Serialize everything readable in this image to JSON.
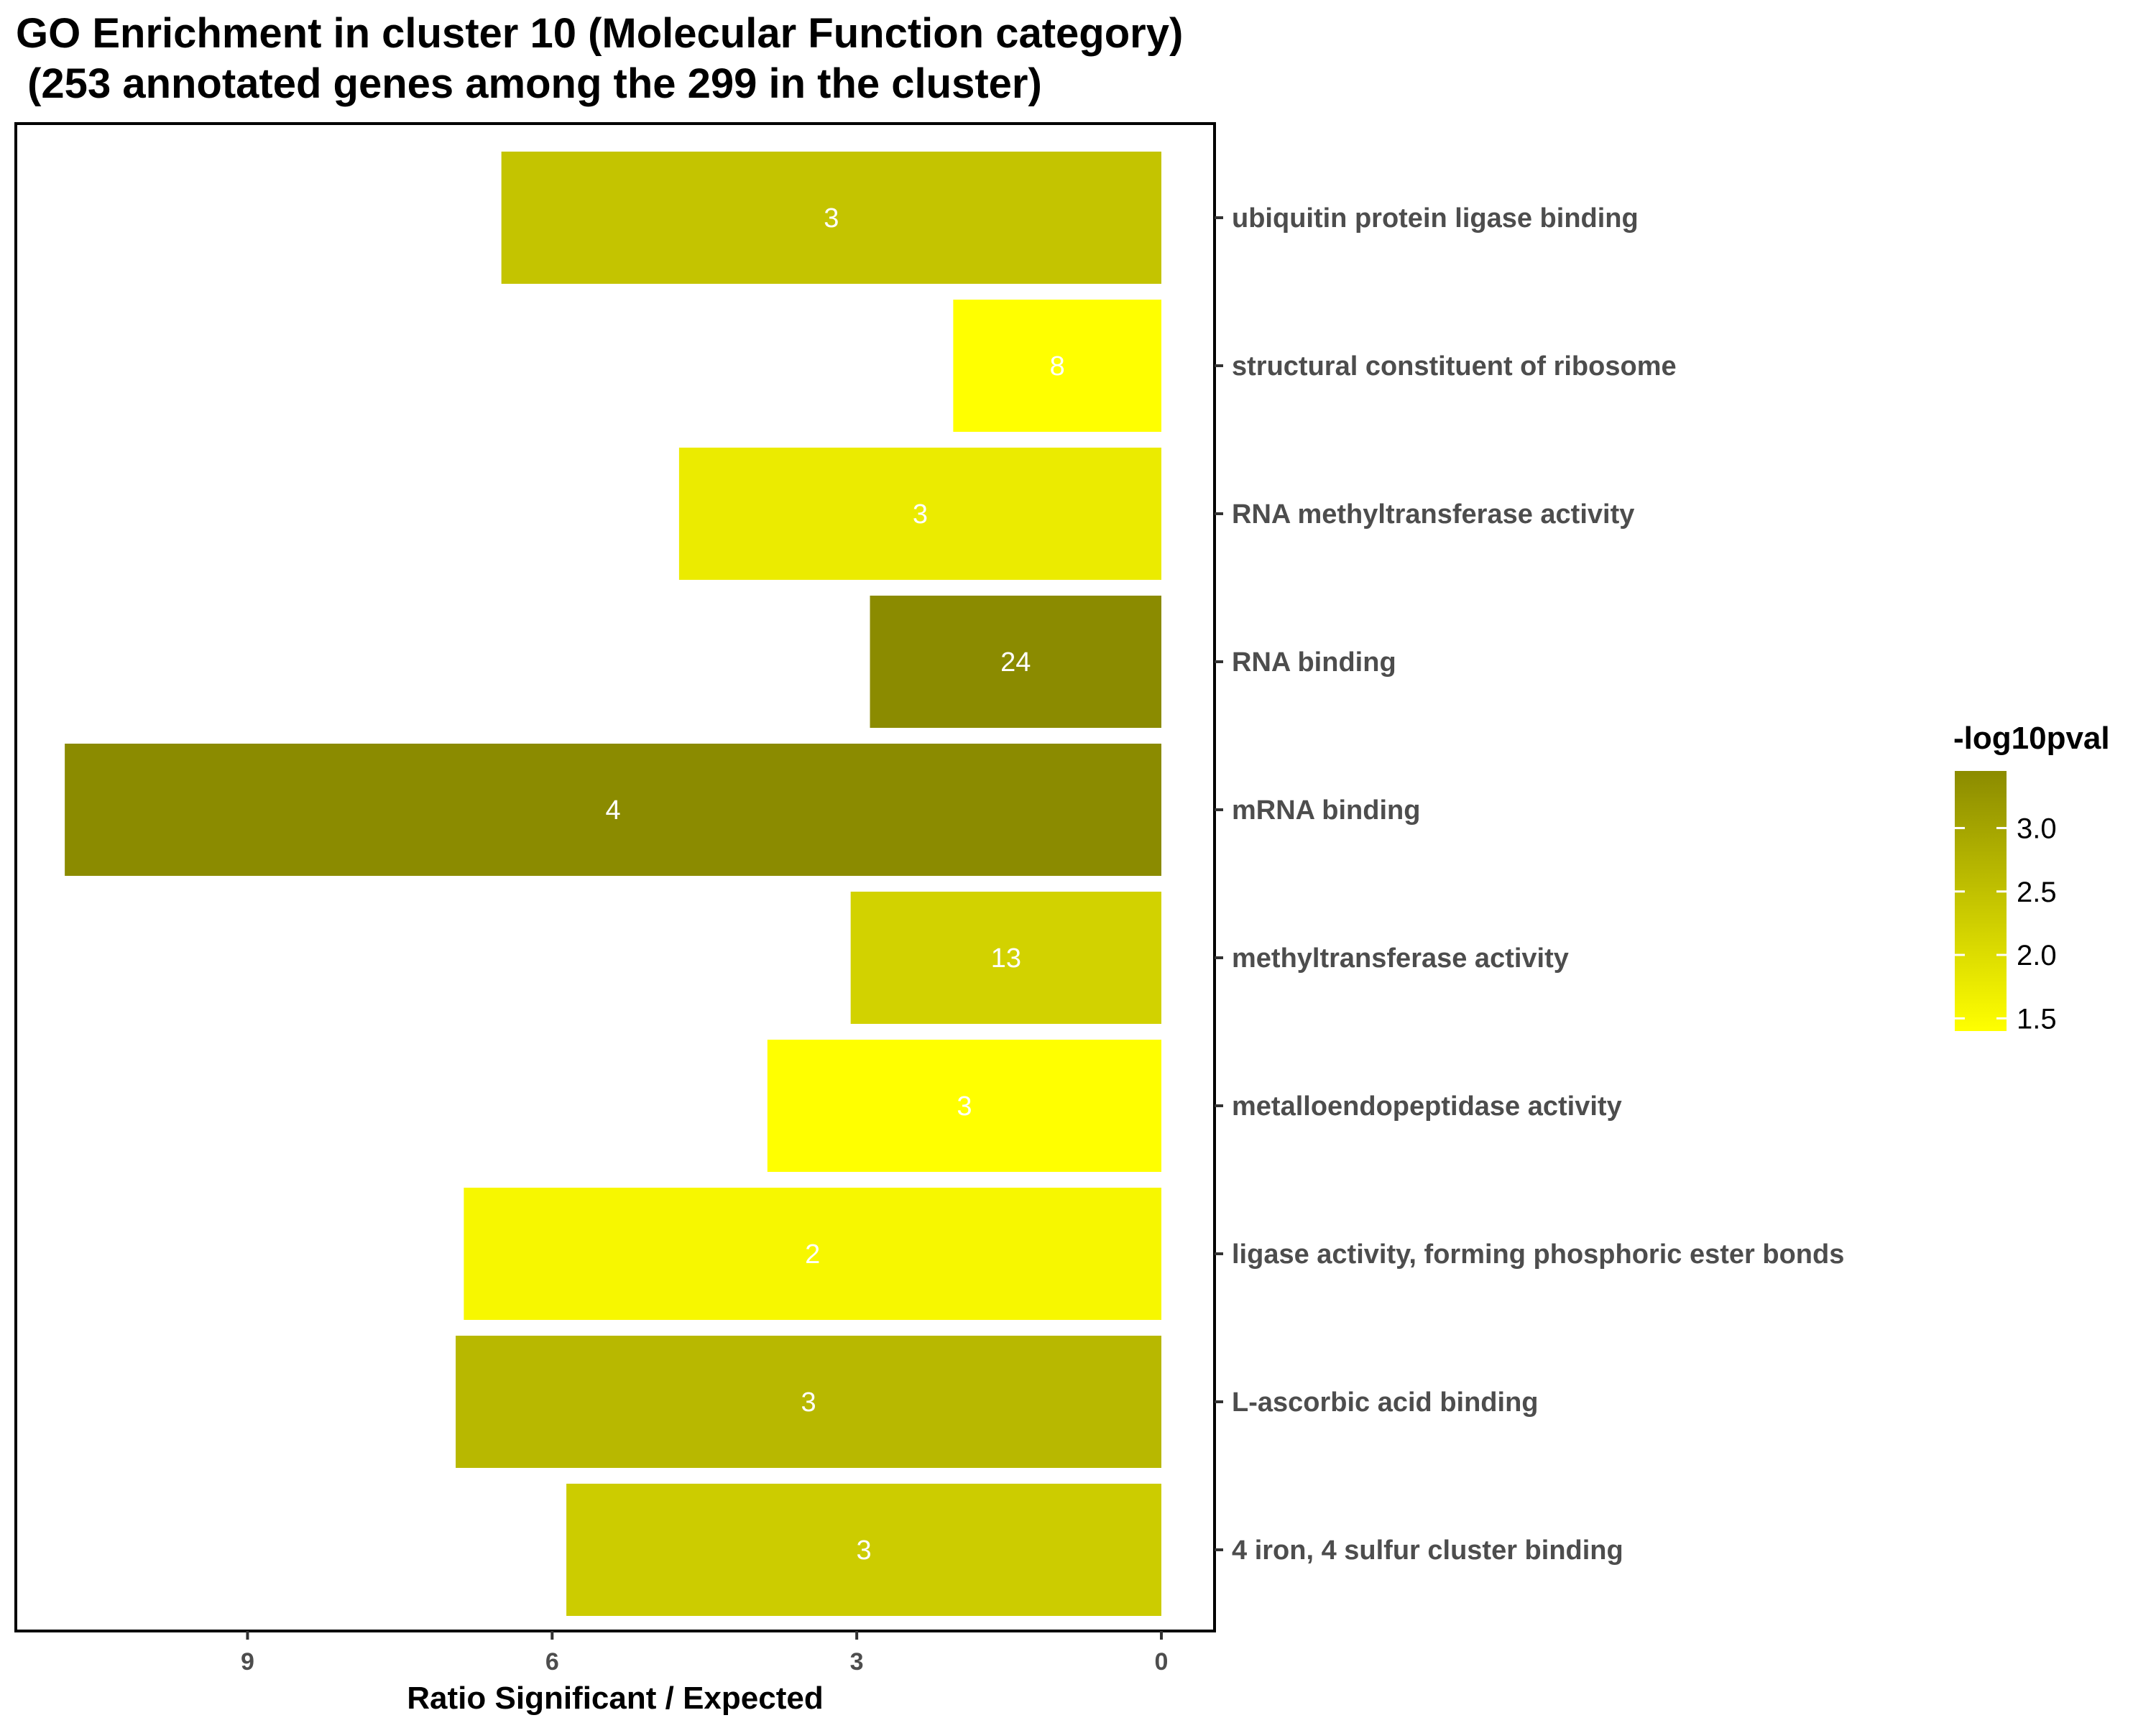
{
  "chart_data": {
    "type": "bar",
    "orientation": "horizontal",
    "title_lines": [
      "GO Enrichment in cluster 10 (Molecular Function category)",
      " (253 annotated genes among the 299 in the cluster)"
    ],
    "xlabel": "Ratio Significant / Expected",
    "ylabel": "",
    "x_reversed": true,
    "xlim": [
      0,
      10.9
    ],
    "xticks": [
      0,
      3,
      6,
      9
    ],
    "categories": [
      "ubiquitin protein ligase binding",
      "structural constituent of ribosome",
      "RNA methyltransferase activity",
      "RNA binding",
      "mRNA binding",
      "methyltransferase activity",
      "metalloendopeptidase activity",
      "ligase activity, forming phosphoric ester bonds",
      "L-ascorbic acid binding",
      "4 iron, 4 sulfur cluster binding"
    ],
    "values": [
      6.5,
      2.05,
      4.75,
      2.87,
      10.8,
      3.06,
      3.88,
      6.87,
      6.95,
      5.86
    ],
    "bar_labels": [
      "3",
      "8",
      "3",
      "24",
      "4",
      "13",
      "3",
      "2",
      "3",
      "3"
    ],
    "color_values": [
      2.45,
      1.4,
      1.75,
      3.45,
      3.45,
      2.2,
      1.4,
      1.55,
      2.65,
      2.3
    ],
    "legend": {
      "title": "-log10pval",
      "placement": "right",
      "min": 1.4,
      "max": 3.45,
      "ticks": [
        1.5,
        2.0,
        2.5,
        3.0
      ],
      "tick_labels": [
        "1.5",
        "2.0",
        "2.5",
        "3.0"
      ],
      "color_low": "#ffff00",
      "color_high": "#8b8b00"
    },
    "grid": false
  }
}
